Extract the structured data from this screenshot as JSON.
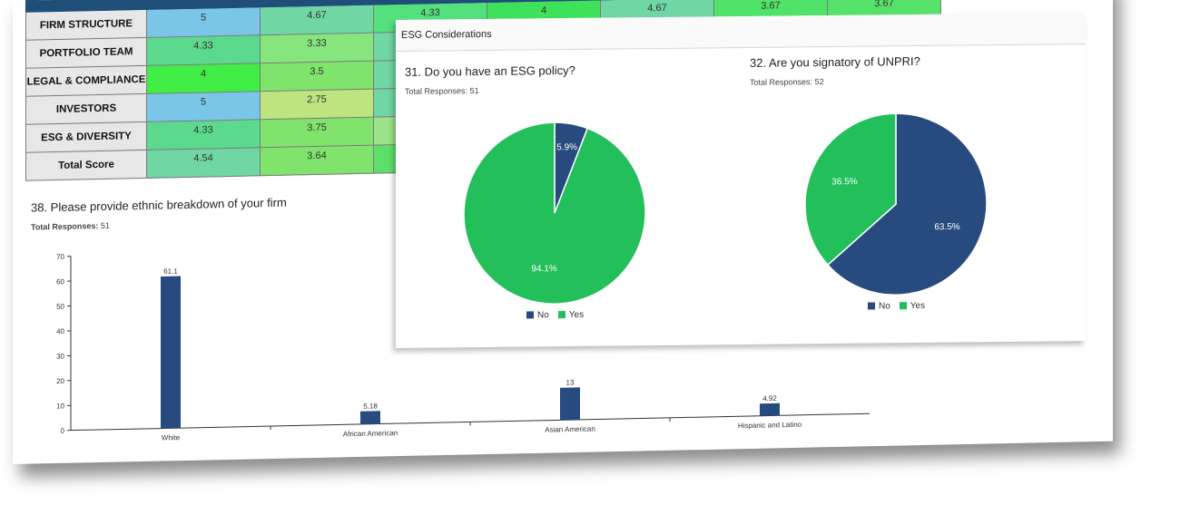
{
  "colors": {
    "no": "#274b7e",
    "yes": "#22bf5b",
    "bar": "#274b7e",
    "header_band": "#1f4e79"
  },
  "heatmap": {
    "rows": [
      {
        "label": "FIRM STRUCTURE",
        "values": [
          "5",
          "4.67",
          "4.33",
          "4",
          "4.67",
          "3.67",
          "3.67"
        ],
        "colors": [
          "#7ac6e8",
          "#6fd6a4",
          "#54e07d",
          "#3ee25a",
          "#6fd6a4",
          "#50e36a",
          "#56e26a"
        ]
      },
      {
        "label": "PORTFOLIO TEAM",
        "values": [
          "4.33",
          "3.33",
          "",
          "",
          "",
          "",
          ""
        ],
        "colors": [
          "#5bd98d",
          "#86e57c",
          "#6fd6a4",
          "",
          "",
          "",
          ""
        ]
      },
      {
        "label": "LEGAL & COMPLIANCE",
        "values": [
          "4",
          "3.5",
          "",
          "",
          "",
          "",
          ""
        ],
        "colors": [
          "#40ee45",
          "#7fe36c",
          "#6fd6a4",
          "",
          "",
          "",
          ""
        ]
      },
      {
        "label": "INVESTORS",
        "values": [
          "5",
          "2.75",
          "",
          "",
          "",
          "",
          ""
        ],
        "colors": [
          "#7ac6e8",
          "#bde47e",
          "#6fd6a4",
          "",
          "",
          "",
          ""
        ]
      },
      {
        "label": "ESG & DIVERSITY",
        "values": [
          "4.33",
          "3.75",
          "",
          "",
          "",
          "",
          ""
        ],
        "colors": [
          "#5bd98d",
          "#7fe36c",
          "#9be288",
          "",
          "",
          "",
          ""
        ]
      },
      {
        "label": "Total Score",
        "values": [
          "4.54",
          "3.64",
          "",
          "",
          "",
          "",
          ""
        ],
        "colors": [
          "#6fd6a4",
          "#7fe36c",
          "#5edf6a",
          "",
          "",
          "",
          ""
        ]
      }
    ]
  },
  "ethnic_chart": {
    "title": "38. Please provide ethnic breakdown of your firm",
    "responses_label": "Total Responses:",
    "responses_value": "51"
  },
  "esg": {
    "header": "ESG Considerations",
    "q31": {
      "title": "31. Do you have an ESG policy?",
      "responses_label": "Total Responses:",
      "responses_value": "51"
    },
    "q32": {
      "title": "32.  Are you signatory of UNPRI?",
      "responses_label": "Total Responses:",
      "responses_value": "52"
    },
    "legend": {
      "no": "No",
      "yes": "Yes"
    }
  },
  "chart_data": [
    {
      "type": "bar",
      "title": "38. Please provide ethnic breakdown of your firm",
      "categories": [
        "White",
        "African American",
        "Asian American",
        "Hispanic and Latino"
      ],
      "values": [
        61.1,
        5.18,
        13,
        4.92
      ],
      "value_labels": [
        "61.1",
        "5.18",
        "13",
        "4.92"
      ],
      "ylim": [
        0,
        70
      ],
      "yticks": [
        0,
        10,
        20,
        30,
        40,
        50,
        60,
        70
      ],
      "grid": false
    },
    {
      "type": "pie",
      "title": "31. Do you have an ESG policy?",
      "labels": [
        "No",
        "Yes"
      ],
      "values": [
        5.9,
        94.1
      ],
      "value_labels": [
        "5.9%",
        "94.1%"
      ],
      "legend": "bottom"
    },
    {
      "type": "pie",
      "title": "32.  Are you signatory of UNPRI?",
      "labels": [
        "No",
        "Yes"
      ],
      "values": [
        63.5,
        36.5
      ],
      "value_labels": [
        "63.5%",
        "36.5%"
      ],
      "legend": "bottom"
    }
  ]
}
